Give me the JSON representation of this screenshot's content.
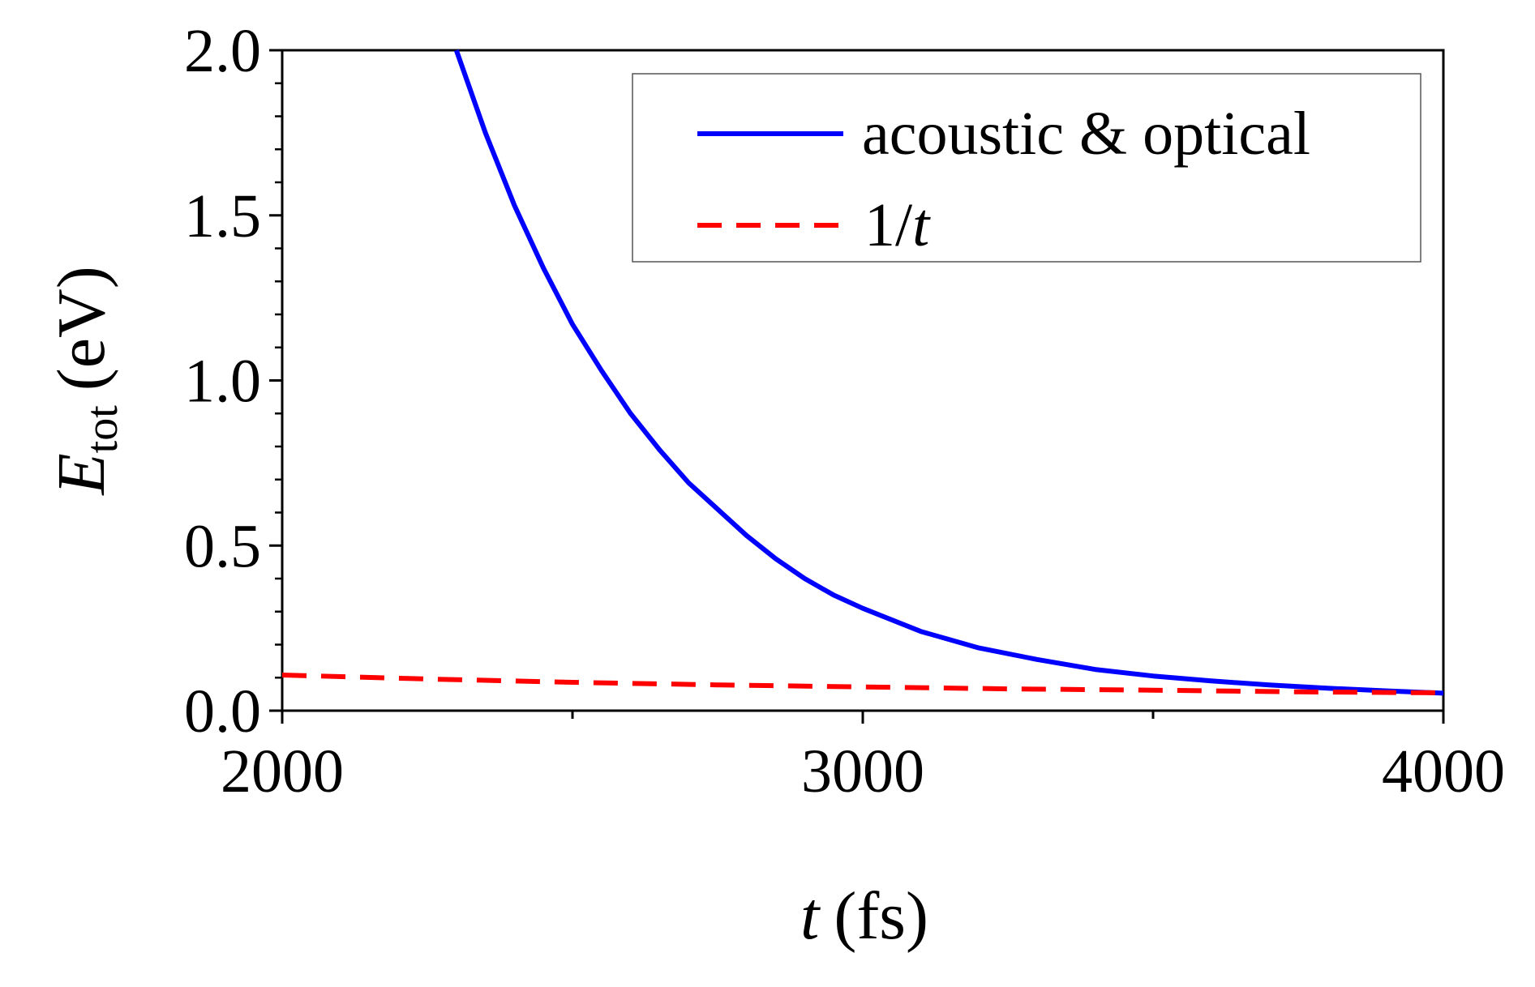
{
  "chart_data": {
    "type": "line",
    "x_axis": {
      "label_var": "t",
      "label_unit": "(fs)",
      "range": [
        2000,
        4000
      ],
      "major_ticks": [
        2000,
        3000,
        4000
      ],
      "tick_labels": [
        "2000",
        "3000",
        "4000"
      ],
      "minor_ticks": [
        2500,
        3500
      ]
    },
    "y_axis": {
      "label_var": "E",
      "label_sub": "tot",
      "label_unit": "(eV)",
      "range": [
        0,
        2.0
      ],
      "major_ticks": [
        0.0,
        0.5,
        1.0,
        1.5,
        2.0
      ],
      "tick_labels": [
        "0.0",
        "0.5",
        "1.0",
        "1.5",
        "2.0"
      ],
      "minor_step": 0.1
    },
    "grid": false,
    "legend": {
      "placement": "top-right",
      "entries": [
        {
          "series": 0,
          "text": "acoustic & optical"
        },
        {
          "series": 1,
          "text_prefix": "1/",
          "text_var": "t"
        }
      ]
    },
    "series": [
      {
        "name": "acoustic & optical",
        "color": "#0000ff",
        "style": "solid",
        "x": [
          2300,
          2350,
          2400,
          2450,
          2500,
          2550,
          2600,
          2650,
          2700,
          2750,
          2800,
          2850,
          2900,
          2950,
          3000,
          3100,
          3200,
          3300,
          3400,
          3500,
          3600,
          3700,
          3800,
          3900,
          4000
        ],
        "y": [
          2.0,
          1.75,
          1.53,
          1.34,
          1.17,
          1.03,
          0.9,
          0.79,
          0.69,
          0.61,
          0.53,
          0.46,
          0.4,
          0.35,
          0.31,
          0.24,
          0.19,
          0.155,
          0.125,
          0.105,
          0.09,
          0.078,
          0.068,
          0.06,
          0.053
        ]
      },
      {
        "name": "1/t",
        "color": "#ff0000",
        "style": "dashed",
        "x": [
          2000,
          2250,
          2500,
          2750,
          3000,
          3250,
          3500,
          3750,
          4000
        ],
        "y": [
          0.108,
          0.096,
          0.086,
          0.078,
          0.072,
          0.066,
          0.062,
          0.057,
          0.054
        ]
      }
    ]
  }
}
